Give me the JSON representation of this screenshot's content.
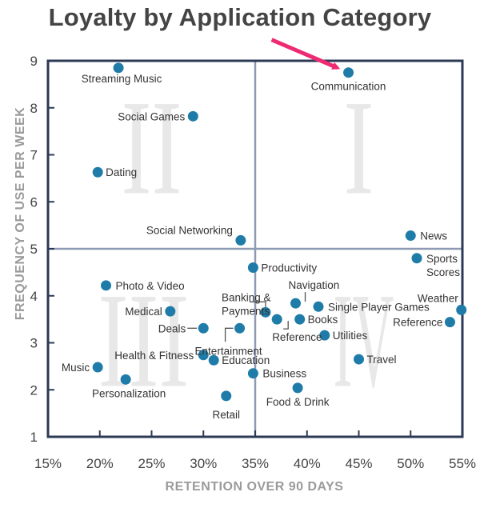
{
  "chart_data": {
    "type": "scatter",
    "title": "Loyalty by Application Category",
    "xlabel": "RETENTION OVER 90 DAYS",
    "ylabel": "FREQUENCY OF USE PER WEEK",
    "xlim": [
      15,
      55
    ],
    "ylim": [
      1,
      9
    ],
    "x_ticks": [
      "15%",
      "20%",
      "25%",
      "30%",
      "35%",
      "40%",
      "45%",
      "50%",
      "55%"
    ],
    "x_tick_values": [
      15,
      20,
      25,
      30,
      35,
      40,
      45,
      50,
      55
    ],
    "y_ticks": [
      "1",
      "2",
      "3",
      "4",
      "5",
      "6",
      "7",
      "8",
      "9"
    ],
    "y_tick_values": [
      1,
      2,
      3,
      4,
      5,
      6,
      7,
      8,
      9
    ],
    "x_divider": 35,
    "y_divider": 5,
    "quadrants": [
      {
        "label": "I",
        "x": 45,
        "y": 7
      },
      {
        "label": "II",
        "x": 25,
        "y": 7
      },
      {
        "label": "III",
        "x": 25,
        "y": 3
      },
      {
        "label": "IV",
        "x": 45,
        "y": 3
      }
    ],
    "point_color": "#1f7ca8",
    "arrow_color": "#ee2a72",
    "highlighted": "Communication",
    "points": [
      {
        "label": "Streaming Music",
        "x": 21.8,
        "y": 8.85
      },
      {
        "label": "Communication",
        "x": 44,
        "y": 8.75
      },
      {
        "label": "Social Games",
        "x": 29,
        "y": 7.82
      },
      {
        "label": "Dating",
        "x": 19.8,
        "y": 6.63
      },
      {
        "label": "Social Networking",
        "x": 33.6,
        "y": 5.18
      },
      {
        "label": "News",
        "x": 50,
        "y": 5.28
      },
      {
        "label": "Sports\nScores",
        "x": 50.6,
        "y": 4.8
      },
      {
        "label": "Productivity",
        "x": 34.8,
        "y": 4.6
      },
      {
        "label": "Photo & Video",
        "x": 20.6,
        "y": 4.22
      },
      {
        "label": "Medical",
        "x": 26.8,
        "y": 3.67
      },
      {
        "label": "Banking &\nPayments",
        "x": 36,
        "y": 3.65
      },
      {
        "label": "Navigation",
        "x": 38.9,
        "y": 3.84
      },
      {
        "label": "Single Player Games",
        "x": 41.1,
        "y": 3.77
      },
      {
        "label": "Weather",
        "x": 54.9,
        "y": 3.7
      },
      {
        "label": "Reference",
        "x": 53.8,
        "y": 3.44
      },
      {
        "label": "Reference",
        "x": 37.1,
        "y": 3.5
      },
      {
        "label": "Books",
        "x": 39.3,
        "y": 3.5
      },
      {
        "label": "Deals",
        "x": 30,
        "y": 3.31
      },
      {
        "label": "Entertainment",
        "x": 33.5,
        "y": 3.31
      },
      {
        "label": "Utilities",
        "x": 41.7,
        "y": 3.16
      },
      {
        "label": "Health & Fitness",
        "x": 30,
        "y": 2.74
      },
      {
        "label": "Education",
        "x": 31,
        "y": 2.63
      },
      {
        "label": "Travel",
        "x": 45,
        "y": 2.65
      },
      {
        "label": "Music",
        "x": 19.8,
        "y": 2.48
      },
      {
        "label": "Business",
        "x": 34.8,
        "y": 2.35
      },
      {
        "label": "Personalization",
        "x": 22.5,
        "y": 2.22
      },
      {
        "label": "Food & Drink",
        "x": 39.1,
        "y": 2.04
      },
      {
        "label": "Retail",
        "x": 32.2,
        "y": 1.87
      }
    ]
  }
}
